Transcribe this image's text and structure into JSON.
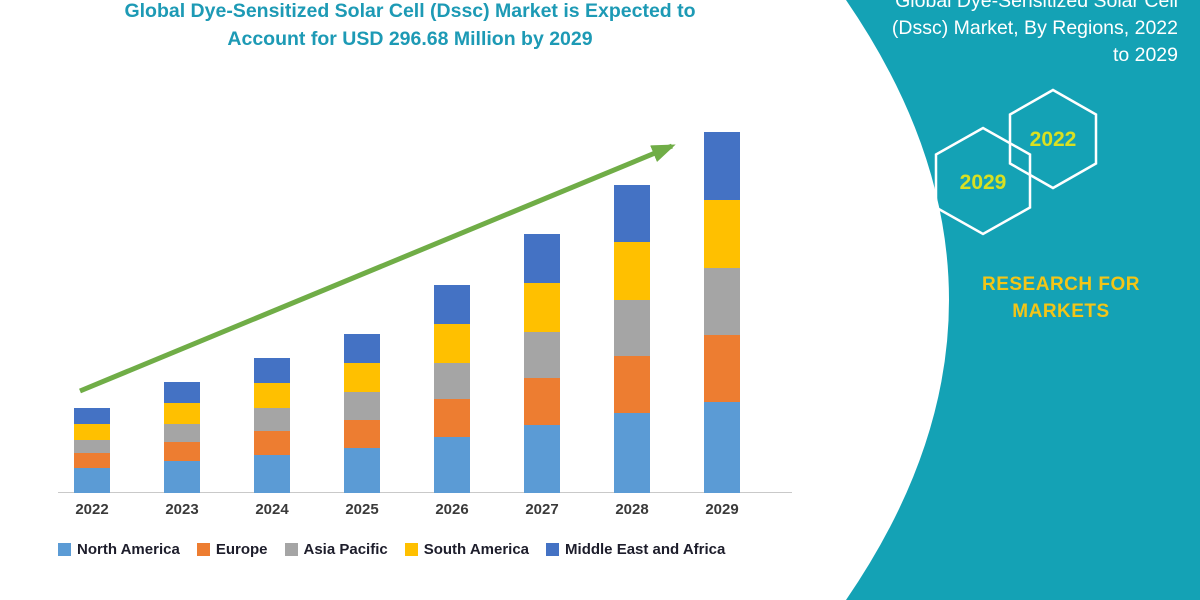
{
  "header": {
    "line1": "Global Dye-Sensitized Solar Cell (Dssc) Market is Expected to",
    "line2": "Account for USD 296.68 Million by 2029",
    "color": "#1D9AB5"
  },
  "chart_data": {
    "type": "bar",
    "stacked": true,
    "title": "Global Dye-Sensitized Solar Cell (Dssc) Market is Expected to Account for USD 296.68 Million by 2029",
    "categories": [
      "2022",
      "2023",
      "2024",
      "2025",
      "2026",
      "2027",
      "2028",
      "2029"
    ],
    "series": [
      {
        "name": "North America",
        "color": "#5B9BD5",
        "values": [
          21,
          26,
          31,
          37,
          46,
          56,
          66,
          75
        ]
      },
      {
        "name": "Europe",
        "color": "#ED7D31",
        "values": [
          12,
          16,
          20,
          23,
          31,
          39,
          47,
          55
        ]
      },
      {
        "name": "Asia Pacific",
        "color": "#A5A5A5",
        "values": [
          11,
          15,
          19,
          23,
          30,
          38,
          46,
          55
        ]
      },
      {
        "name": "South America",
        "color": "#FFC000",
        "values": [
          13,
          17,
          21,
          24,
          32,
          40,
          48,
          56
        ]
      },
      {
        "name": "Middle East and Africa",
        "color": "#4472C4",
        "values": [
          13,
          17,
          21,
          24,
          32,
          40,
          47,
          55.68
        ]
      }
    ],
    "totals_note": "2029 total = 296.68 million USD",
    "xlabel": "",
    "ylabel": "",
    "ylim": [
      0,
      300
    ],
    "grid": false,
    "legend_position": "bottom",
    "trend_arrow_color": "#70AD47"
  },
  "side_panel": {
    "bg_color": "#14A2B5",
    "heading_line1": "Global Dye-Sensitized Solar Cell",
    "heading_line2": "(Dssc) Market, By Regions, 2022",
    "heading_line3": "to 2029",
    "hexagons": [
      {
        "year": "2029"
      },
      {
        "year": "2022"
      }
    ],
    "hexagon_year_color": "#D9E021",
    "brand_line1": "RESEARCH FOR",
    "brand_line2": "MARKETS",
    "brand_color": "#F3C517"
  }
}
